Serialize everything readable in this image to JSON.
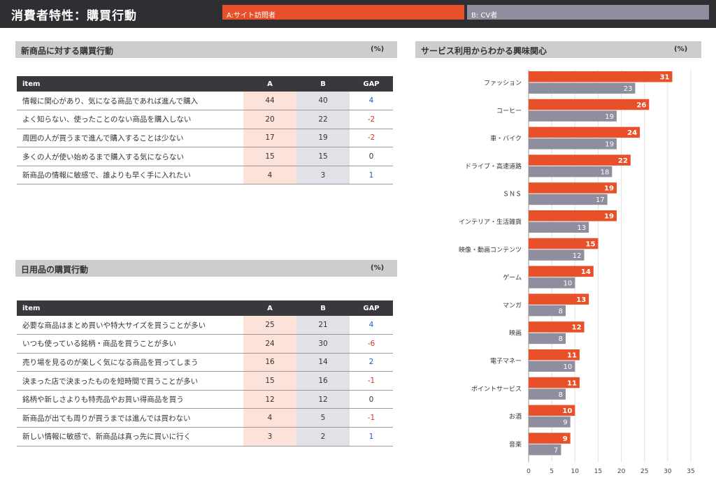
{
  "header": {
    "title": "消費者特性：購買行動",
    "legend_a": "A:サイト訪問者",
    "legend_b": "B: CV者"
  },
  "colors": {
    "a": "#e8502a",
    "b": "#8e8e9e"
  },
  "section1": {
    "title": "新商品に対する購買行動",
    "unit": "(%)",
    "columns": [
      "item",
      "A",
      "B",
      "GAP"
    ],
    "rows": [
      {
        "item": "情報に関心があり、気になる商品であれば進んで購入",
        "a": "44",
        "b": "40",
        "gap": "4"
      },
      {
        "item": "よく知らない、使ったことのない商品を購入しない",
        "a": "20",
        "b": "22",
        "gap": "-2"
      },
      {
        "item": "周囲の人が買うまで進んで購入することは少ない",
        "a": "17",
        "b": "19",
        "gap": "-2"
      },
      {
        "item": "多くの人が使い始めるまで購入する気にならない",
        "a": "15",
        "b": "15",
        "gap": "0"
      },
      {
        "item": "新商品の情報に敏感で、誰よりも早く手に入れたい",
        "a": "4",
        "b": "3",
        "gap": "1"
      }
    ]
  },
  "section2": {
    "title": "日用品の購買行動",
    "unit": "(%)",
    "columns": [
      "item",
      "A",
      "B",
      "GAP"
    ],
    "rows": [
      {
        "item": "必要な商品はまとめ買いや特大サイズを買うことが多い",
        "a": "25",
        "b": "21",
        "gap": "4"
      },
      {
        "item": "いつも使っている銘柄・商品を買うことが多い",
        "a": "24",
        "b": "30",
        "gap": "-6"
      },
      {
        "item": "売り場を見るのが楽しく気になる商品を買ってしまう",
        "a": "16",
        "b": "14",
        "gap": "2"
      },
      {
        "item": "決まった店で決まったものを短時間で買うことが多い",
        "a": "15",
        "b": "16",
        "gap": "-1"
      },
      {
        "item": "銘柄や新しさよりも特売品やお買い得商品を買う",
        "a": "12",
        "b": "12",
        "gap": "0"
      },
      {
        "item": "新商品が出ても周りが買うまでは進んでは買わない",
        "a": "4",
        "b": "5",
        "gap": "-1"
      },
      {
        "item": "新しい情報に敏感で、新商品は真っ先に買いに行く",
        "a": "3",
        "b": "2",
        "gap": "1"
      }
    ]
  },
  "section3": {
    "title": "サービス利用からわかる興味関心",
    "unit": "(%)"
  },
  "chart_data": {
    "type": "bar",
    "orientation": "horizontal",
    "categories": [
      "ファッション",
      "コーヒー",
      "車・バイク",
      "ドライブ・高速道路",
      "ＳＮＳ",
      "インテリア・生活雑貨",
      "映像・動画コンテンツ",
      "ゲーム",
      "マンガ",
      "映画",
      "電子マネー",
      "ポイントサービス",
      "お酒",
      "音楽"
    ],
    "series": [
      {
        "name": "A:サイト訪問者",
        "values": [
          31,
          26,
          24,
          22,
          19,
          19,
          15,
          14,
          13,
          12,
          11,
          11,
          10,
          9
        ]
      },
      {
        "name": "B: CV者",
        "values": [
          23,
          19,
          19,
          18,
          17,
          13,
          12,
          10,
          8,
          8,
          10,
          8,
          9,
          7
        ]
      }
    ],
    "xlim": [
      0,
      35
    ],
    "xticks": [
      "0",
      "5",
      "10",
      "15",
      "20",
      "25",
      "30",
      "35"
    ],
    "grid": true,
    "data_labels": true
  }
}
